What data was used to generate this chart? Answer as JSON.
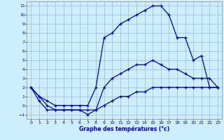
{
  "title": "Graphe des températures (°c)",
  "bg_color": "#cceeff",
  "line_color": "#0000bb",
  "grid_color": "#99bbcc",
  "xlim": [
    -0.5,
    23.5
  ],
  "ylim": [
    -1.5,
    11.5
  ],
  "xticks": [
    0,
    1,
    2,
    3,
    4,
    5,
    6,
    7,
    8,
    9,
    10,
    11,
    12,
    13,
    14,
    15,
    16,
    17,
    18,
    19,
    20,
    21,
    22,
    23
  ],
  "yticks": [
    -1,
    0,
    1,
    2,
    3,
    4,
    5,
    6,
    7,
    8,
    9,
    10,
    11
  ],
  "line1_x": [
    0,
    1,
    2,
    3,
    4,
    5,
    6,
    7,
    8,
    9,
    10,
    11,
    12,
    13,
    14,
    15,
    16,
    17,
    18,
    19,
    20,
    21,
    22,
    23
  ],
  "line1_y": [
    2.0,
    1.0,
    0.5,
    0.0,
    0.0,
    0.0,
    0.0,
    0.0,
    2.0,
    7.5,
    8.0,
    9.0,
    9.5,
    10.0,
    10.5,
    11.0,
    11.0,
    10.0,
    7.5,
    7.5,
    5.0,
    5.5,
    2.0,
    2.0
  ],
  "line2_x": [
    0,
    1,
    2,
    3,
    4,
    5,
    6,
    7,
    8,
    9,
    10,
    11,
    12,
    13,
    14,
    15,
    16,
    17,
    18,
    19,
    20,
    21,
    22,
    23
  ],
  "line2_y": [
    2.0,
    1.0,
    0.0,
    -0.5,
    -0.5,
    -0.5,
    -0.5,
    -1.0,
    -0.5,
    2.0,
    3.0,
    3.5,
    4.0,
    4.5,
    4.5,
    5.0,
    4.5,
    4.0,
    4.0,
    3.5,
    3.0,
    3.0,
    3.0,
    2.0
  ],
  "line3_x": [
    0,
    1,
    2,
    3,
    4,
    5,
    6,
    7,
    8,
    9,
    10,
    11,
    12,
    13,
    14,
    15,
    16,
    17,
    18,
    19,
    20,
    21,
    22,
    23
  ],
  "line3_y": [
    2.0,
    0.5,
    -0.5,
    -0.5,
    -0.5,
    -0.5,
    -0.5,
    -0.5,
    -0.5,
    0.0,
    0.5,
    1.0,
    1.0,
    1.5,
    1.5,
    2.0,
    2.0,
    2.0,
    2.0,
    2.0,
    2.0,
    2.0,
    2.0,
    2.0
  ]
}
